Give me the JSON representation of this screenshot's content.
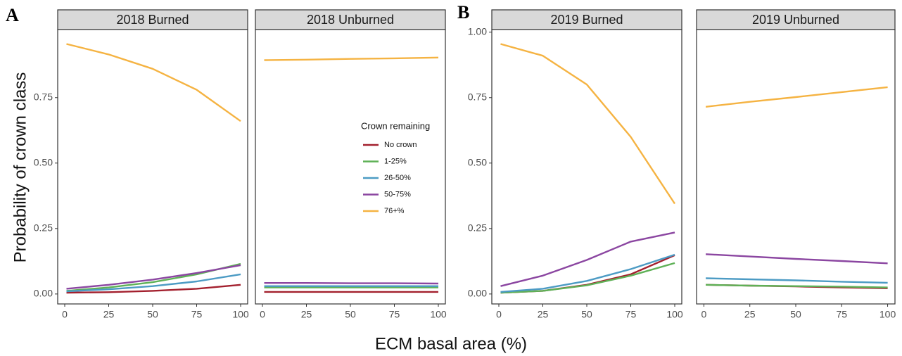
{
  "panel_labels": [
    "A",
    "B"
  ],
  "x_label": "ECM basal area (%)",
  "y_label": "Probability of crown class",
  "chart_data": [
    {
      "type": "line",
      "title": "2018 Burned",
      "x": [
        1,
        25,
        50,
        75,
        100
      ],
      "xlim": [
        -4,
        104
      ],
      "xticks": [
        0,
        25,
        50,
        75,
        100
      ],
      "ylim": [
        -0.038,
        1.01
      ],
      "yticks": [
        {
          "value": 0,
          "label": "0.00"
        },
        {
          "value": 0.25,
          "label": "0.25"
        },
        {
          "value": 0.5,
          "label": "0.50"
        },
        {
          "value": 0.75,
          "label": "0.75"
        }
      ],
      "series": [
        {
          "name": "No crown",
          "color": "#a3202e",
          "values": [
            0.005,
            0.007,
            0.012,
            0.02,
            0.035
          ]
        },
        {
          "name": "1-25%",
          "color": "#5fb157",
          "values": [
            0.012,
            0.025,
            0.045,
            0.075,
            0.115
          ]
        },
        {
          "name": "26-50%",
          "color": "#4c9bc4",
          "values": [
            0.01,
            0.018,
            0.03,
            0.048,
            0.075
          ]
        },
        {
          "name": "50-75%",
          "color": "#8b46a1",
          "values": [
            0.02,
            0.035,
            0.055,
            0.08,
            0.11
          ]
        },
        {
          "name": "76+%",
          "color": "#f5b342",
          "values": [
            0.955,
            0.915,
            0.86,
            0.78,
            0.66
          ]
        }
      ]
    },
    {
      "type": "line",
      "title": "2018 Unburned",
      "x": [
        1,
        25,
        50,
        75,
        100
      ],
      "xlim": [
        -4,
        104
      ],
      "xticks": [
        0,
        25,
        50,
        75,
        100
      ],
      "ylim": [
        -0.038,
        1.01
      ],
      "legend": true,
      "legend_title": "Crown remaining",
      "series": [
        {
          "name": "No crown",
          "color": "#a3202e",
          "values": [
            0.008,
            0.008,
            0.008,
            0.008,
            0.008
          ]
        },
        {
          "name": "1-25%",
          "color": "#5fb157",
          "values": [
            0.025,
            0.025,
            0.025,
            0.025,
            0.025
          ]
        },
        {
          "name": "26-50%",
          "color": "#4c9bc4",
          "values": [
            0.03,
            0.03,
            0.03,
            0.03,
            0.03
          ]
        },
        {
          "name": "50-75%",
          "color": "#8b46a1",
          "values": [
            0.042,
            0.042,
            0.041,
            0.041,
            0.04
          ]
        },
        {
          "name": "76+%",
          "color": "#f5b342",
          "values": [
            0.893,
            0.895,
            0.898,
            0.9,
            0.903
          ]
        }
      ]
    },
    {
      "type": "line",
      "title": "2019 Burned",
      "x": [
        1,
        25,
        50,
        75,
        100
      ],
      "xlim": [
        -4,
        104
      ],
      "xticks": [
        0,
        25,
        50,
        75,
        100
      ],
      "ylim": [
        -0.038,
        1.01
      ],
      "yticks": [
        {
          "value": 0,
          "label": "0.00"
        },
        {
          "value": 0.25,
          "label": "0.25"
        },
        {
          "value": 0.5,
          "label": "0.50"
        },
        {
          "value": 0.75,
          "label": "0.75"
        },
        {
          "value": 1,
          "label": "1.00"
        }
      ],
      "series": [
        {
          "name": "No crown",
          "color": "#a3202e",
          "values": [
            0.005,
            0.012,
            0.035,
            0.075,
            0.148
          ]
        },
        {
          "name": "1-25%",
          "color": "#5fb157",
          "values": [
            0.005,
            0.012,
            0.033,
            0.07,
            0.118
          ]
        },
        {
          "name": "26-50%",
          "color": "#4c9bc4",
          "values": [
            0.008,
            0.02,
            0.05,
            0.095,
            0.15
          ]
        },
        {
          "name": "50-75%",
          "color": "#8b46a1",
          "values": [
            0.03,
            0.07,
            0.13,
            0.2,
            0.235
          ]
        },
        {
          "name": "76+%",
          "color": "#f5b342",
          "values": [
            0.955,
            0.91,
            0.8,
            0.6,
            0.345
          ]
        }
      ]
    },
    {
      "type": "line",
      "title": "2019 Unburned",
      "x": [
        1,
        25,
        50,
        75,
        100
      ],
      "xlim": [
        -4,
        104
      ],
      "xticks": [
        0,
        25,
        50,
        75,
        100
      ],
      "ylim": [
        -0.038,
        1.01
      ],
      "series": [
        {
          "name": "No crown",
          "color": "#a3202e",
          "values": [
            0.035,
            0.032,
            0.029,
            0.025,
            0.022
          ]
        },
        {
          "name": "1-25%",
          "color": "#5fb157",
          "values": [
            0.035,
            0.032,
            0.03,
            0.028,
            0.025
          ]
        },
        {
          "name": "26-50%",
          "color": "#4c9bc4",
          "values": [
            0.06,
            0.056,
            0.052,
            0.047,
            0.043
          ]
        },
        {
          "name": "50-75%",
          "color": "#8b46a1",
          "values": [
            0.152,
            0.143,
            0.134,
            0.126,
            0.117
          ]
        },
        {
          "name": "76+%",
          "color": "#f5b342",
          "values": [
            0.715,
            0.734,
            0.752,
            0.771,
            0.79
          ]
        }
      ]
    }
  ]
}
